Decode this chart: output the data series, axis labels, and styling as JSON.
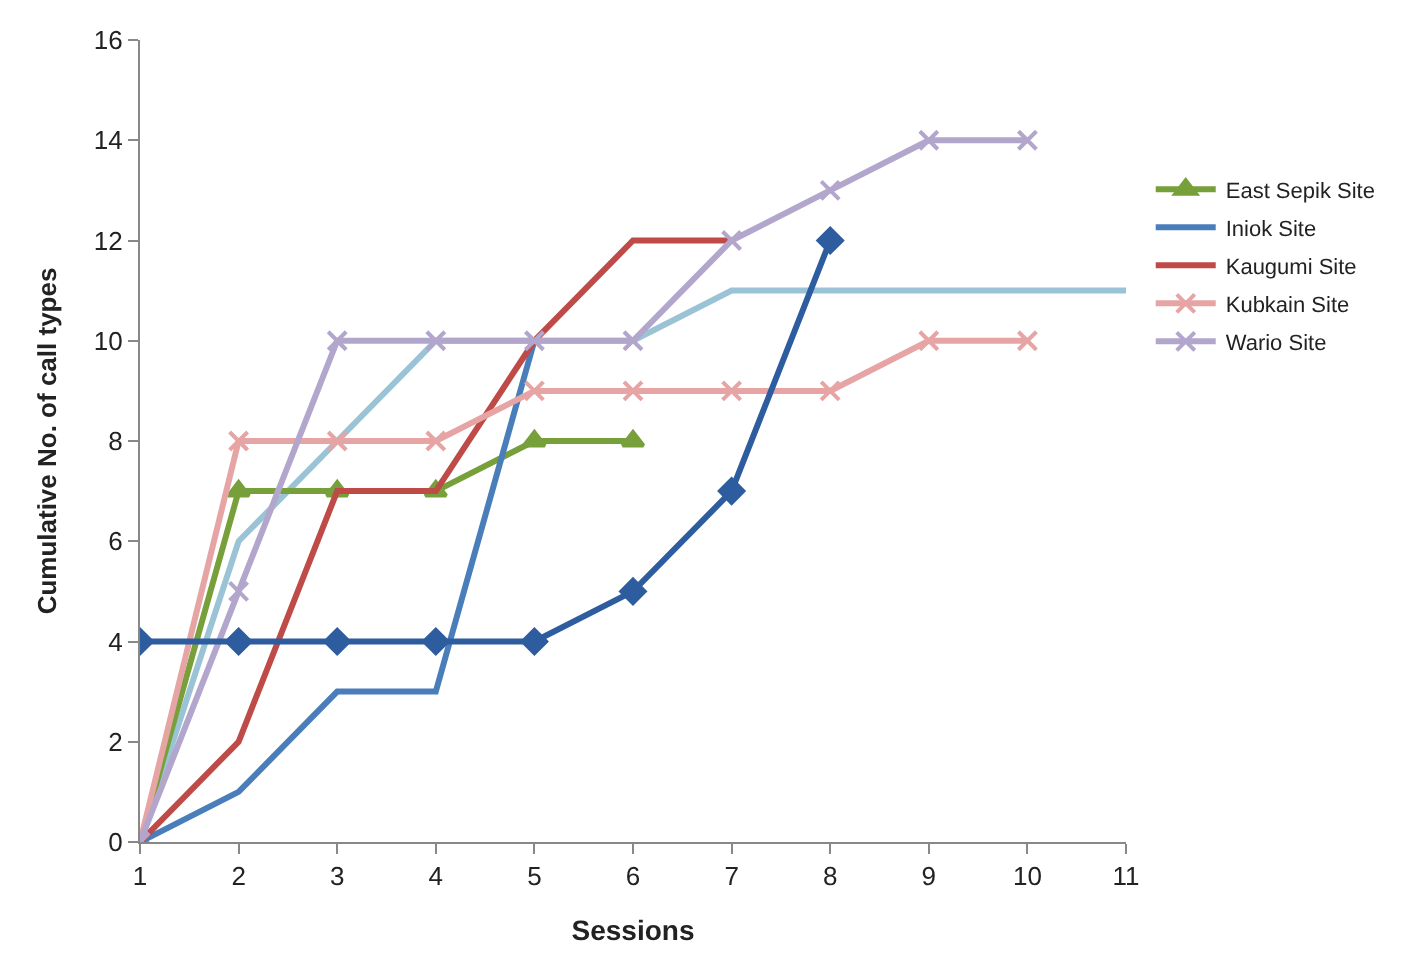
{
  "chart_data": {
    "type": "line",
    "xlabel": "Sessions",
    "ylabel": "Cumulative No. of call types",
    "xlim": [
      1,
      11
    ],
    "xticks": [
      1,
      2,
      3,
      4,
      5,
      6,
      7,
      8,
      9,
      10,
      11
    ],
    "ylim": [
      0,
      16
    ],
    "yticks": [
      0,
      2,
      4,
      6,
      8,
      10,
      12,
      14,
      16
    ],
    "grid": false,
    "legend": "right",
    "line_style": "solid",
    "series": [
      {
        "color": "#9ac3d6",
        "marker": "none",
        "x": [
          1,
          2,
          3,
          4,
          5,
          6,
          7,
          8,
          9,
          10,
          11
        ],
        "values": [
          0,
          6,
          8,
          10,
          10,
          10,
          11,
          11,
          11,
          11,
          11
        ]
      },
      {
        "name": "East Sepik Site",
        "color": "#77a03a",
        "marker": "triangle",
        "x": [
          1,
          2,
          3,
          4,
          5,
          6
        ],
        "values": [
          0,
          7,
          7,
          7,
          8,
          8
        ]
      },
      {
        "name": "Iniok Site",
        "color": "#4a7ebb",
        "marker": "none",
        "x": [
          1,
          2,
          3,
          4,
          5
        ],
        "values": [
          0,
          1,
          3,
          3,
          10
        ]
      },
      {
        "name": "Kaugumi Site",
        "color": "#be4b48",
        "marker": "none",
        "x": [
          1,
          2,
          3,
          4,
          5,
          6,
          7
        ],
        "values": [
          0,
          2,
          7,
          7,
          10,
          12,
          12
        ]
      },
      {
        "name": "Kubkain Site",
        "color": "#e6a5a4",
        "marker": "cross",
        "x": [
          1,
          2,
          3,
          4,
          5,
          6,
          7,
          8,
          9,
          10
        ],
        "values": [
          0,
          8,
          8,
          8,
          9,
          9,
          9,
          9,
          10,
          10
        ]
      },
      {
        "name": "Wario Site",
        "color": "#b3a6cc",
        "marker": "cross",
        "x": [
          1,
          2,
          3,
          4,
          5,
          6,
          7,
          8,
          9,
          10
        ],
        "values": [
          0,
          5,
          10,
          10,
          10,
          10,
          12,
          13,
          14,
          14
        ]
      },
      {
        "color": "#2e5d9f",
        "marker": "diamond",
        "x": [
          1,
          2,
          3,
          4,
          5,
          6,
          7,
          8
        ],
        "values": [
          4,
          4,
          4,
          4,
          4,
          5,
          7,
          12
        ]
      }
    ]
  }
}
